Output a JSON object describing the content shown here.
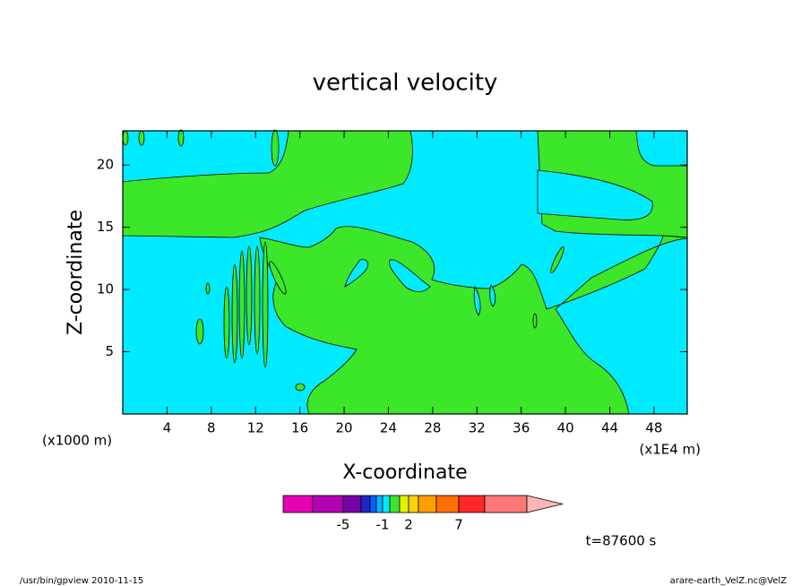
{
  "chart_data": {
    "type": "contour",
    "title": "vertical velocity",
    "xlabel": "X-coordinate",
    "ylabel": "Z-coordinate",
    "xunit": "(x1E4 m)",
    "yunit": "(x1000 m)",
    "xlim": [
      0,
      51
    ],
    "ylim": [
      0,
      22.75
    ],
    "xticks": [
      4,
      8,
      12,
      16,
      20,
      24,
      28,
      32,
      36,
      40,
      44,
      48
    ],
    "yticks": [
      5,
      10,
      15,
      20
    ],
    "colorbar": {
      "colors": [
        "#e400b4",
        "#b400b4",
        "#7800a8",
        "#1e28c8",
        "#0064ff",
        "#00b4ff",
        "#00ebff",
        "#3ce628",
        "#e6f000",
        "#ffd200",
        "#ffa000",
        "#ff6e00",
        "#ff2828",
        "#ff7878"
      ],
      "extend_color": "#ffb4b4",
      "ticks": [
        -5,
        -1,
        2,
        7
      ]
    },
    "annotation": "t=87600 s"
  },
  "footer": {
    "left": "/usr/bin/gpview  2010-11-15",
    "right": "arare-earth_VelZ.nc@VelZ"
  }
}
